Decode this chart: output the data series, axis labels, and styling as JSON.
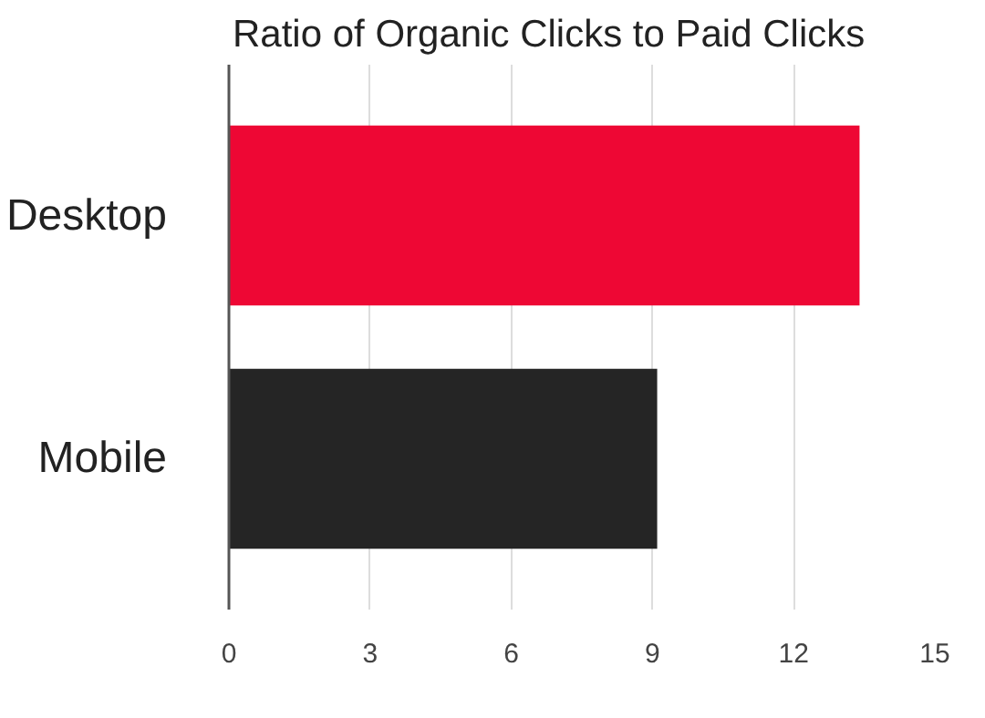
{
  "chart_data": {
    "type": "bar",
    "orientation": "horizontal",
    "title": "Ratio of Organic Clicks to Paid Clicks",
    "categories": [
      "Desktop",
      "Mobile"
    ],
    "values": [
      13.4,
      9.1
    ],
    "colors": [
      "#ee0734",
      "#252525"
    ],
    "xlim": [
      0,
      15
    ],
    "xticks": [
      0,
      3,
      6,
      9,
      12,
      15
    ],
    "grid": "x"
  }
}
